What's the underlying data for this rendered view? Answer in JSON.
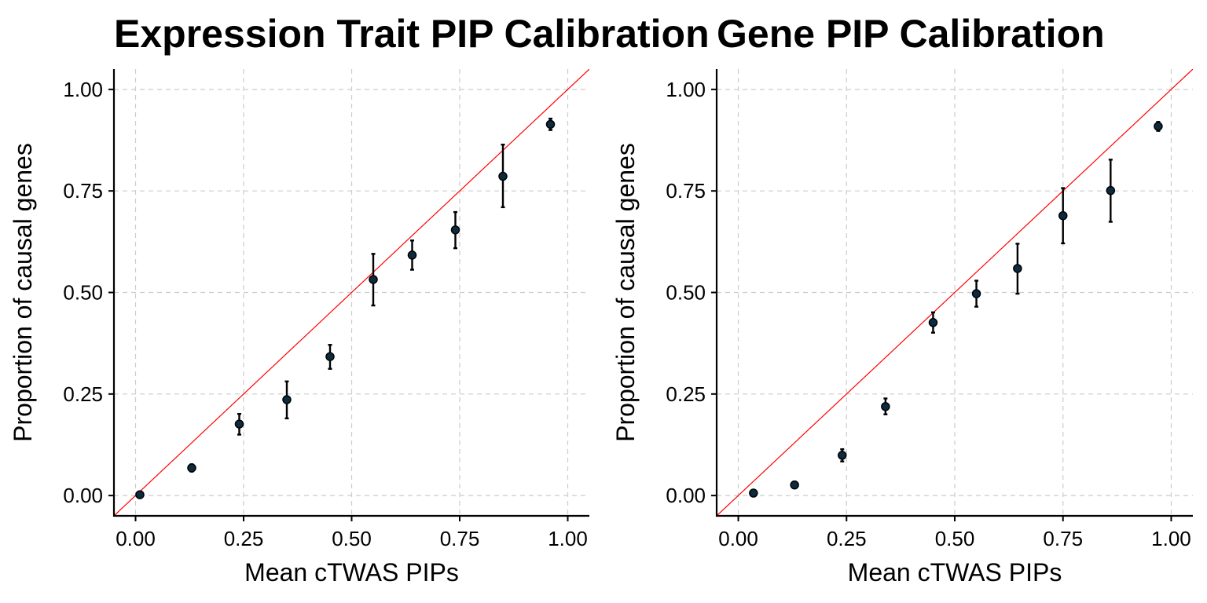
{
  "chart_data": [
    {
      "type": "scatter",
      "title": "Expression Trait PIP Calibration",
      "xlabel": "Mean cTWAS PIPs",
      "ylabel": "Proportion of causal genes",
      "xlim": [
        -0.05,
        1.05
      ],
      "ylim": [
        -0.05,
        1.05
      ],
      "xticks": [
        0,
        0.25,
        0.5,
        0.75,
        1
      ],
      "xtick_labels": [
        "0.00",
        "0.25",
        "0.50",
        "0.75",
        "1.00"
      ],
      "yticks": [
        0,
        0.25,
        0.5,
        0.75,
        1
      ],
      "ytick_labels": [
        "0.00",
        "0.25",
        "0.50",
        "0.75",
        "1.00"
      ],
      "grid": true,
      "reference_line": {
        "slope": 1,
        "intercept": 0,
        "color": "#ff0000"
      },
      "point_color": "#0d2b3e",
      "points": [
        {
          "x": 0.01,
          "y": 0.002,
          "lower": 0.0,
          "upper": 0.004
        },
        {
          "x": 0.13,
          "y": 0.068,
          "lower": 0.059,
          "upper": 0.077
        },
        {
          "x": 0.24,
          "y": 0.176,
          "lower": 0.15,
          "upper": 0.201
        },
        {
          "x": 0.35,
          "y": 0.236,
          "lower": 0.19,
          "upper": 0.281
        },
        {
          "x": 0.45,
          "y": 0.342,
          "lower": 0.312,
          "upper": 0.371
        },
        {
          "x": 0.55,
          "y": 0.532,
          "lower": 0.468,
          "upper": 0.595
        },
        {
          "x": 0.64,
          "y": 0.592,
          "lower": 0.556,
          "upper": 0.628
        },
        {
          "x": 0.74,
          "y": 0.654,
          "lower": 0.609,
          "upper": 0.698
        },
        {
          "x": 0.85,
          "y": 0.786,
          "lower": 0.71,
          "upper": 0.864
        },
        {
          "x": 0.96,
          "y": 0.914,
          "lower": 0.9,
          "upper": 0.928
        }
      ]
    },
    {
      "type": "scatter",
      "title": "Gene PIP Calibration",
      "xlabel": "Mean cTWAS PIPs",
      "ylabel": "Proportion of causal genes",
      "xlim": [
        -0.05,
        1.05
      ],
      "ylim": [
        -0.05,
        1.05
      ],
      "xticks": [
        0,
        0.25,
        0.5,
        0.75,
        1
      ],
      "xtick_labels": [
        "0.00",
        "0.25",
        "0.50",
        "0.75",
        "1.00"
      ],
      "yticks": [
        0,
        0.25,
        0.5,
        0.75,
        1
      ],
      "ytick_labels": [
        "0.00",
        "0.25",
        "0.50",
        "0.75",
        "1.00"
      ],
      "grid": true,
      "reference_line": {
        "slope": 1,
        "intercept": 0,
        "color": "#ff0000"
      },
      "point_color": "#0d2b3e",
      "points": [
        {
          "x": 0.035,
          "y": 0.006,
          "lower": 0.003,
          "upper": 0.009
        },
        {
          "x": 0.13,
          "y": 0.026,
          "lower": 0.021,
          "upper": 0.031
        },
        {
          "x": 0.24,
          "y": 0.099,
          "lower": 0.084,
          "upper": 0.114
        },
        {
          "x": 0.34,
          "y": 0.219,
          "lower": 0.2,
          "upper": 0.239
        },
        {
          "x": 0.45,
          "y": 0.426,
          "lower": 0.401,
          "upper": 0.451
        },
        {
          "x": 0.55,
          "y": 0.497,
          "lower": 0.465,
          "upper": 0.529
        },
        {
          "x": 0.645,
          "y": 0.559,
          "lower": 0.497,
          "upper": 0.62
        },
        {
          "x": 0.75,
          "y": 0.689,
          "lower": 0.621,
          "upper": 0.757
        },
        {
          "x": 0.86,
          "y": 0.751,
          "lower": 0.674,
          "upper": 0.827
        },
        {
          "x": 0.97,
          "y": 0.909,
          "lower": 0.898,
          "upper": 0.92
        }
      ]
    }
  ]
}
